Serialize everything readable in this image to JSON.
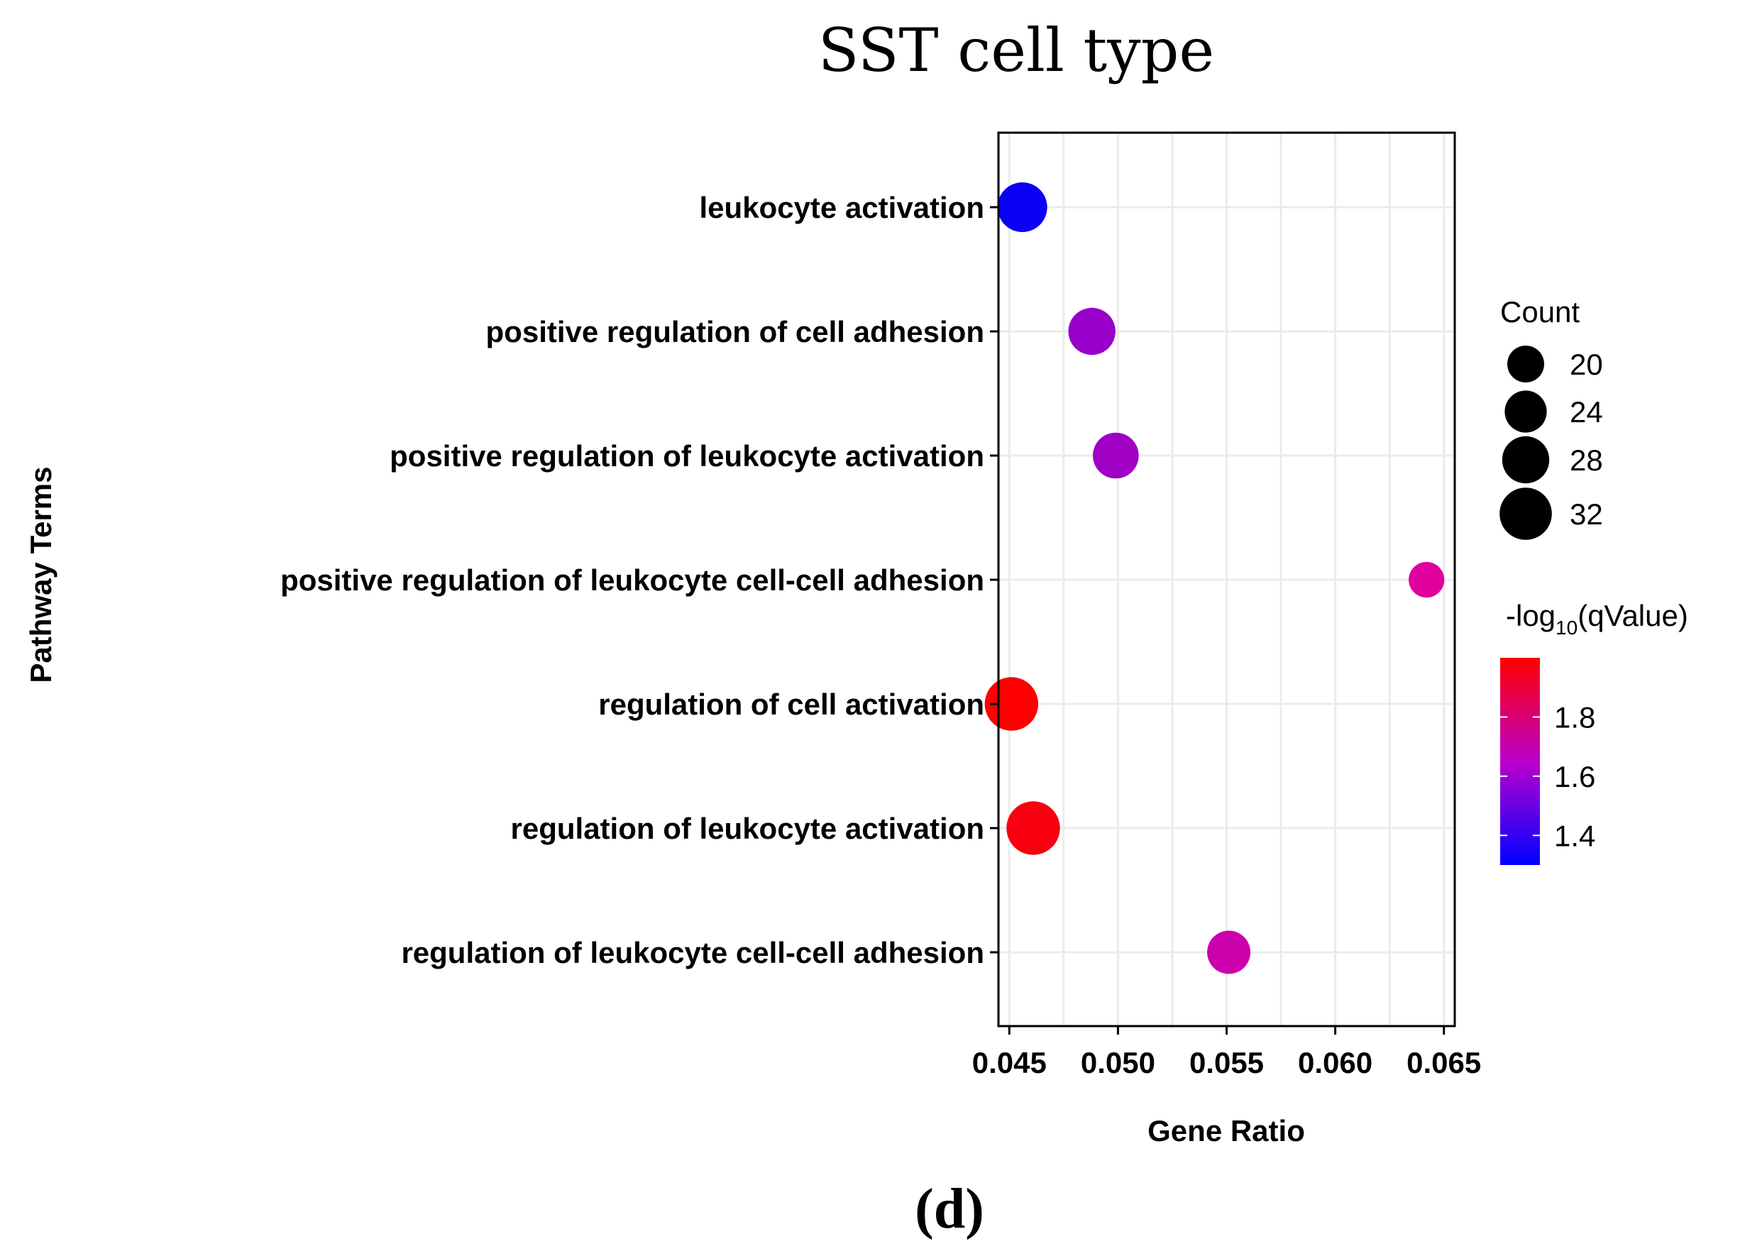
{
  "chart_data": {
    "type": "scatter",
    "title": "SST cell type",
    "xlabel": "Gene Ratio",
    "ylabel": "Pathway Terms",
    "panel_label": "(d)",
    "xlim": [
      0.0445,
      0.0655
    ],
    "xticks": [
      "0.045",
      "0.050",
      "0.055",
      "0.060",
      "0.065"
    ],
    "xtick_values": [
      0.045,
      0.05,
      0.055,
      0.06,
      0.065
    ],
    "categories": [
      "leukocyte activation",
      "positive regulation of cell adhesion",
      "positive regulation of leukocyte activation",
      "positive regulation of leukocyte cell-cell adhesion",
      "regulation of cell activation",
      "regulation of leukocyte activation",
      "regulation of leukocyte cell-cell adhesion"
    ],
    "points": [
      {
        "term": "leukocyte activation",
        "gene_ratio": 0.0456,
        "count": 30,
        "neg_log10_q": 1.33
      },
      {
        "term": "positive regulation of cell adhesion",
        "gene_ratio": 0.0488,
        "count": 28,
        "neg_log10_q": 1.5
      },
      {
        "term": "positive regulation of leukocyte activation",
        "gene_ratio": 0.0499,
        "count": 27,
        "neg_log10_q": 1.52
      },
      {
        "term": "positive regulation of leukocyte cell-cell adhesion",
        "gene_ratio": 0.0642,
        "count": 19,
        "neg_log10_q": 1.75
      },
      {
        "term": "regulation of cell activation",
        "gene_ratio": 0.0451,
        "count": 33,
        "neg_log10_q": 2.0
      },
      {
        "term": "regulation of leukocyte activation",
        "gene_ratio": 0.0461,
        "count": 33,
        "neg_log10_q": 1.95
      },
      {
        "term": "regulation of leukocyte cell-cell adhesion",
        "gene_ratio": 0.0551,
        "count": 25,
        "neg_log10_q": 1.7
      }
    ],
    "legend_size": {
      "title": "Count",
      "labels": [
        "20",
        "24",
        "28",
        "32"
      ],
      "values": [
        20,
        24,
        28,
        32
      ]
    },
    "legend_color": {
      "title_prefix": "-log",
      "title_sub": "10",
      "title_suffix": "(qValue)",
      "labels": [
        "1.8",
        "1.6",
        "1.4"
      ],
      "values": [
        1.8,
        1.6,
        1.4
      ],
      "range": [
        1.3,
        2.0
      ],
      "low_color": "#0000ff",
      "high_color": "#ff0000"
    },
    "point_colors": [
      "#0a00f5",
      "#9900cc",
      "#a000c4",
      "#e0009e",
      "#ff0000",
      "#f80010",
      "#cc00aa"
    ]
  }
}
